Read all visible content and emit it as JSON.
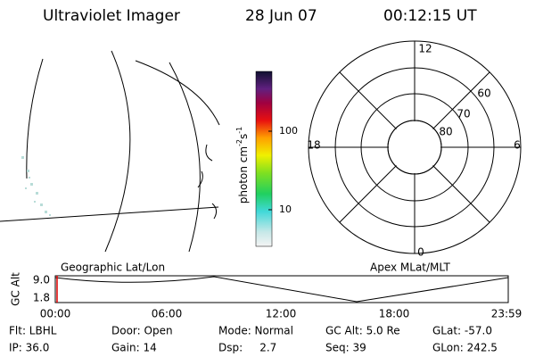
{
  "header": {
    "title": "Ultraviolet Imager",
    "date": "28 Jun 07",
    "time": "00:12:15 UT"
  },
  "colorbar": {
    "label": [
      "photon cm",
      "-2",
      "s",
      "-1"
    ],
    "ticks": [
      "100",
      "10"
    ]
  },
  "polar": {
    "mlt_labels": [
      "12",
      "0",
      "18",
      "6"
    ],
    "lat_labels": [
      "60",
      "70",
      "80"
    ]
  },
  "timeline": {
    "left_title": "Geographic Lat/Lon",
    "right_title": "Apex MLat/MLT",
    "axis_label": "GC Alt",
    "y_labels": [
      "9.0",
      "1.8"
    ],
    "time_labels": [
      "00:00",
      "06:00",
      "12:00",
      "18:00",
      "23:59"
    ]
  },
  "info": {
    "rows": [
      [
        "Flt: LBHL",
        "Door: Open",
        "Mode: Normal",
        "GC Alt: 5.0 Re",
        "GLat: -57.0"
      ],
      [
        "IP: 36.0",
        "Gain: 14",
        "Dsp:     2.7",
        "Seq: 39",
        "GLon: 242.5"
      ]
    ]
  }
}
